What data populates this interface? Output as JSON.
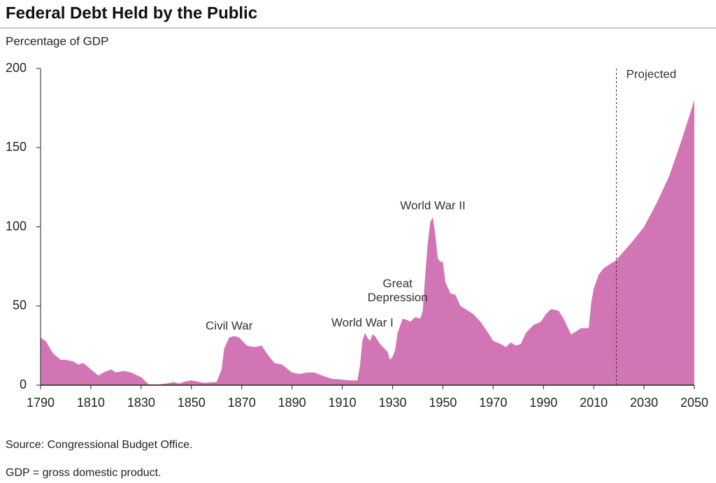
{
  "chart_data": {
    "type": "area",
    "title": "Federal Debt Held by the Public",
    "y_label": "Percentage of GDP",
    "source": "Source: Congressional Budget Office.",
    "note": "GDP = gross domestic product.",
    "color": "#d275b5",
    "xlim": [
      1790,
      2050
    ],
    "xticks": [
      1790,
      1810,
      1830,
      1850,
      1870,
      1890,
      1910,
      1930,
      1950,
      1970,
      1990,
      2010,
      2030,
      2050
    ],
    "ylim": [
      0,
      200
    ],
    "yticks": [
      0,
      50,
      100,
      150,
      200
    ],
    "projected": {
      "label": "Projected",
      "x": 2019
    },
    "annotations": [
      {
        "lines": [
          "Civil War"
        ],
        "x": 1865,
        "y": 37
      },
      {
        "lines": [
          "World War I"
        ],
        "x": 1918,
        "y": 39
      },
      {
        "lines": [
          "Great",
          "Depression"
        ],
        "x": 1932,
        "y": 55
      },
      {
        "lines": [
          "World War II"
        ],
        "x": 1946,
        "y": 113
      }
    ],
    "x": [
      1790,
      1792,
      1795,
      1798,
      1800,
      1803,
      1805,
      1807,
      1810,
      1813,
      1815,
      1818,
      1820,
      1823,
      1826,
      1830,
      1833,
      1837,
      1840,
      1843,
      1845,
      1848,
      1850,
      1855,
      1860,
      1862,
      1863,
      1865,
      1867,
      1869,
      1872,
      1875,
      1878,
      1880,
      1883,
      1886,
      1890,
      1893,
      1896,
      1899,
      1902,
      1906,
      1910,
      1913,
      1916,
      1917,
      1918,
      1919,
      1920,
      1921,
      1922,
      1923,
      1925,
      1928,
      1929,
      1930,
      1931,
      1932,
      1934,
      1936,
      1937,
      1939,
      1941,
      1942,
      1943,
      1944,
      1945,
      1946,
      1947,
      1948,
      1949,
      1950,
      1951,
      1953,
      1955,
      1957,
      1959,
      1962,
      1965,
      1968,
      1970,
      1973,
      1975,
      1977,
      1979,
      1981,
      1983,
      1986,
      1989,
      1991,
      1993,
      1996,
      1998,
      2001,
      2003,
      2005,
      2008,
      2009,
      2010,
      2012,
      2014,
      2016,
      2019,
      2020,
      2025,
      2030,
      2035,
      2040,
      2045,
      2050
    ],
    "values": [
      30,
      28,
      20,
      16,
      16,
      15,
      13,
      14,
      10,
      6,
      8,
      10,
      8,
      9,
      8,
      5,
      0.5,
      0.5,
      1,
      2,
      1,
      2.5,
      3,
      1.5,
      2,
      10,
      23,
      30,
      31,
      30,
      25,
      24,
      25,
      20,
      14,
      13,
      8,
      7,
      8,
      8,
      6,
      4,
      3.5,
      3,
      3,
      12,
      28,
      33,
      30,
      28,
      32,
      31,
      26,
      21,
      16,
      18,
      22,
      33,
      42,
      41,
      40,
      43,
      42,
      47,
      70,
      90,
      103,
      106,
      95,
      80,
      78,
      78,
      65,
      58,
      57,
      50,
      48,
      45,
      40,
      33,
      28,
      26,
      24,
      27,
      25,
      26,
      33,
      38,
      40,
      45,
      48,
      47,
      42,
      32,
      34,
      36,
      36,
      52,
      61,
      70,
      74,
      76,
      79,
      81,
      90,
      100,
      115,
      132,
      155,
      180
    ]
  }
}
